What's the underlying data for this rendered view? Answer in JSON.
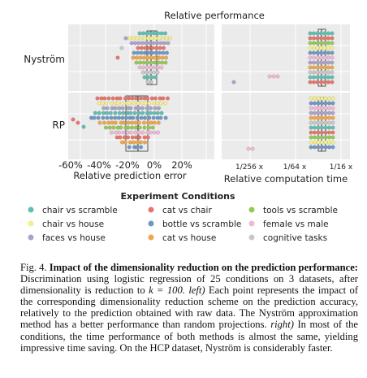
{
  "figure": {
    "title": "Relative performance",
    "row_labels": [
      "Nyström",
      "RP"
    ],
    "left_panel": {
      "xlabel": "Relative prediction error",
      "ticks": [
        "-60%",
        "-40%",
        "-20%",
        "0%",
        "20%"
      ]
    },
    "right_panel": {
      "xlabel": "Relative computation time",
      "ticks": [
        "1/256 x",
        "1/64 x",
        "1/16 x"
      ]
    },
    "legend": {
      "title": "Experiment Conditions",
      "items": [
        {
          "label": "chair vs scramble",
          "color": "#5fbfb3"
        },
        {
          "label": "cat vs chair",
          "color": "#e8756c"
        },
        {
          "label": "tools vs scramble",
          "color": "#93c95a"
        },
        {
          "label": "chair vs house",
          "color": "#f4ee8e"
        },
        {
          "label": "bottle vs scramble",
          "color": "#6f98c4"
        },
        {
          "label": "female vs male",
          "color": "#f0b8d6"
        },
        {
          "label": "faces vs house",
          "color": "#aaa3c8"
        },
        {
          "label": "cat vs house",
          "color": "#f0a64a"
        },
        {
          "label": "cognitive tasks",
          "color": "#c8c8c8"
        }
      ]
    }
  },
  "caption": {
    "label": "Fig. 4.",
    "title": "Impact of the dimensionality reduction on the prediction performance:",
    "text_1": "Discrimination using logistic regression of 25 conditions on 3 datasets, after dimensionality is reduction to",
    "k_expr": "k = 100.",
    "left_tag": "left)",
    "text_2": "Each point represents the impact of the corresponding dimensionality reduction scheme on the prediction accuracy, relatively to the prediction obtained with raw data. The Nyström approximation method has a better performance than random projections.",
    "right_tag": "right)",
    "text_3": "In most of the conditions, the time performance of both methods is almost the same, yielding impressive time saving. On the HCP dataset, Nyström is considerably faster."
  }
}
